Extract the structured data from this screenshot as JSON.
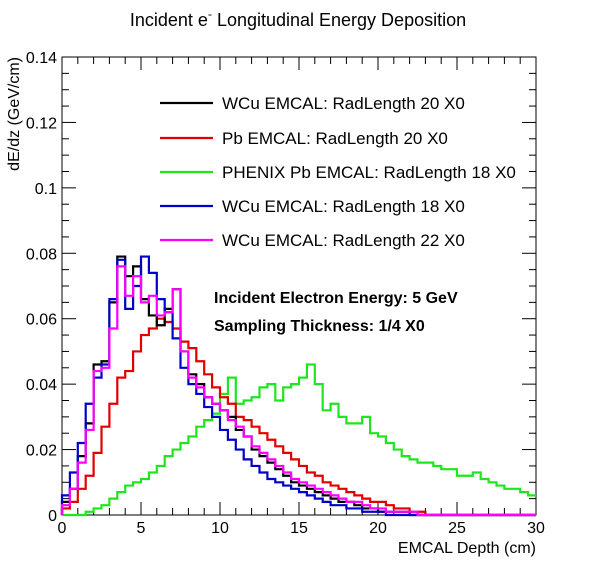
{
  "chart_data": {
    "type": "line",
    "title": "Incident e⁻ Longitudinal Energy Deposition",
    "title_main": "Incident e",
    "title_sup": "-",
    "title_rest": " Longitudinal Energy Deposition",
    "xlabel": "EMCAL Depth (cm)",
    "ylabel": "dE/dz (GeV/cm)",
    "xlim": [
      0,
      30
    ],
    "ylim": [
      0,
      0.14
    ],
    "x_ticks": [
      0,
      5,
      10,
      15,
      20,
      25,
      30
    ],
    "x_tick_labels": [
      "0",
      "5",
      "10",
      "15",
      "20",
      "25",
      "30"
    ],
    "y_ticks": [
      0,
      0.02,
      0.04,
      0.06,
      0.08,
      0.1,
      0.12,
      0.14
    ],
    "y_tick_labels": [
      "0",
      "0.02",
      "0.04",
      "0.06",
      "0.08",
      "0.1",
      "0.12",
      "0.14"
    ],
    "grid": false,
    "legend_position": "top-right",
    "annotations": [
      "Incident Electron Energy: 5 GeV",
      "Sampling Thickness: 1/4 X0"
    ],
    "series": [
      {
        "name": "WCu EMCAL: RadLength 20 X0",
        "color": "#000000",
        "bin_width": 0.5,
        "x_start": 0,
        "values": [
          0.004,
          0.008,
          0.018,
          0.028,
          0.046,
          0.047,
          0.065,
          0.079,
          0.073,
          0.076,
          0.066,
          0.061,
          0.058,
          0.063,
          0.069,
          0.05,
          0.043,
          0.04,
          0.036,
          0.034,
          0.032,
          0.03,
          0.026,
          0.024,
          0.02,
          0.018,
          0.016,
          0.014,
          0.012,
          0.01,
          0.009,
          0.008,
          0.007,
          0.006,
          0.005,
          0.004,
          0.004,
          0.003,
          0.002,
          0.002,
          0.001,
          0.001,
          0.001,
          0.001,
          0.0,
          0.0,
          0.0,
          0.0,
          0.0,
          0.0,
          0.0,
          0.0,
          0.0,
          0.0,
          0.0,
          0.0,
          0.0,
          0.0,
          0.0,
          0.0
        ]
      },
      {
        "name": "Pb EMCAL: RadLength 20 X0",
        "color": "#e00000",
        "bin_width": 0.5,
        "x_start": 0,
        "values": [
          0.002,
          0.004,
          0.008,
          0.012,
          0.019,
          0.027,
          0.034,
          0.042,
          0.044,
          0.05,
          0.055,
          0.057,
          0.06,
          0.059,
          0.057,
          0.053,
          0.051,
          0.047,
          0.043,
          0.039,
          0.036,
          0.034,
          0.03,
          0.029,
          0.027,
          0.025,
          0.023,
          0.021,
          0.019,
          0.017,
          0.015,
          0.013,
          0.012,
          0.01,
          0.009,
          0.008,
          0.007,
          0.006,
          0.005,
          0.004,
          0.004,
          0.003,
          0.002,
          0.002,
          0.001,
          0.001,
          0.0,
          0.0,
          0.0,
          0.0,
          0.0,
          0.0,
          0.0,
          0.0,
          0.0,
          0.0,
          0.0,
          0.0,
          0.0,
          0.0
        ]
      },
      {
        "name": "PHENIX Pb EMCAL: RadLength 18 X0",
        "color": "#1ee61e",
        "bin_width": 0.5,
        "x_start": 0,
        "values": [
          0.0,
          0.0,
          0.0,
          0.001,
          0.002,
          0.003,
          0.005,
          0.007,
          0.009,
          0.01,
          0.011,
          0.013,
          0.015,
          0.018,
          0.02,
          0.022,
          0.024,
          0.027,
          0.029,
          0.031,
          0.037,
          0.042,
          0.034,
          0.035,
          0.036,
          0.039,
          0.04,
          0.035,
          0.039,
          0.04,
          0.042,
          0.046,
          0.04,
          0.032,
          0.034,
          0.03,
          0.028,
          0.028,
          0.03,
          0.025,
          0.024,
          0.022,
          0.02,
          0.018,
          0.017,
          0.016,
          0.016,
          0.015,
          0.014,
          0.014,
          0.012,
          0.012,
          0.013,
          0.011,
          0.01,
          0.009,
          0.008,
          0.008,
          0.007,
          0.006
        ]
      },
      {
        "name": "WCu EMCAL: RadLength 18 X0",
        "color": "#0000c8",
        "bin_width": 0.5,
        "x_start": 0,
        "values": [
          0.006,
          0.013,
          0.022,
          0.034,
          0.042,
          0.046,
          0.066,
          0.078,
          0.063,
          0.07,
          0.079,
          0.074,
          0.066,
          0.062,
          0.054,
          0.045,
          0.04,
          0.037,
          0.033,
          0.03,
          0.026,
          0.023,
          0.02,
          0.017,
          0.015,
          0.013,
          0.011,
          0.01,
          0.009,
          0.008,
          0.007,
          0.006,
          0.005,
          0.004,
          0.003,
          0.003,
          0.002,
          0.002,
          0.001,
          0.001,
          0.001,
          0.0,
          0.0,
          0.0,
          0.0,
          0.0,
          0.0,
          0.0,
          0.0,
          0.0,
          0.0,
          0.0,
          0.0,
          0.0,
          0.0,
          0.0,
          0.0,
          0.0,
          0.0,
          0.0
        ]
      },
      {
        "name": "WCu EMCAL: RadLength 22 X0",
        "color": "#ff00ff",
        "bin_width": 0.5,
        "x_start": 0,
        "values": [
          0.003,
          0.008,
          0.016,
          0.026,
          0.044,
          0.045,
          0.057,
          0.076,
          0.067,
          0.073,
          0.065,
          0.067,
          0.061,
          0.062,
          0.069,
          0.05,
          0.042,
          0.039,
          0.036,
          0.034,
          0.032,
          0.029,
          0.027,
          0.024,
          0.021,
          0.019,
          0.017,
          0.015,
          0.013,
          0.011,
          0.01,
          0.009,
          0.008,
          0.007,
          0.006,
          0.005,
          0.004,
          0.004,
          0.003,
          0.002,
          0.002,
          0.001,
          0.001,
          0.001,
          0.001,
          0.0,
          0.0,
          0.0,
          0.0,
          0.0,
          0.0,
          0.0,
          0.0,
          0.0,
          0.0,
          0.0,
          0.0,
          0.0,
          0.0,
          0.0
        ]
      }
    ]
  }
}
